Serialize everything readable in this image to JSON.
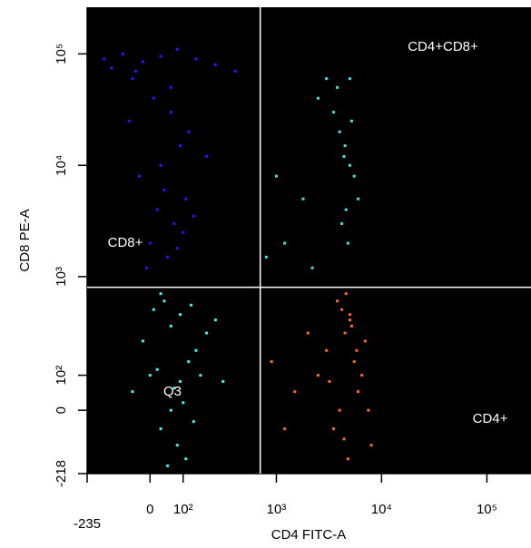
{
  "chart_data": {
    "type": "scatter",
    "x_label": "CD4 FITC-A",
    "y_label": "CD8 PE-A",
    "x_scale": "biexponential",
    "y_scale": "biexponential",
    "xlim": [
      -235,
      262144
    ],
    "ylim": [
      -218,
      262144
    ],
    "xticks": [
      {
        "value": -235,
        "label": "-235"
      },
      0,
      {
        "value": 100,
        "label": "10²"
      },
      {
        "value": 1000,
        "label": "10³"
      },
      {
        "value": 10000,
        "label": "10⁴"
      },
      {
        "value": 100000,
        "label": "10⁵"
      }
    ],
    "yticks": [
      {
        "value": -218,
        "label": "-218"
      },
      0,
      {
        "value": 100,
        "label": "10²"
      },
      {
        "value": 1000,
        "label": "10³"
      },
      {
        "value": 10000,
        "label": "10⁴"
      },
      {
        "value": 100000,
        "label": "10⁵"
      }
    ],
    "divider_x": 700,
    "divider_y": 800,
    "series": [
      {
        "name": "CD8+",
        "color": "#1a1aff",
        "x": [
          -150,
          -80,
          -20,
          30,
          80,
          150,
          250,
          400,
          -120,
          -50,
          10,
          60,
          120,
          200,
          -30,
          40,
          90,
          -60,
          20,
          70,
          110,
          0,
          50,
          100,
          -10,
          80,
          30,
          60,
          140,
          -40
        ],
        "values": [
          90000,
          100000,
          85000,
          95000,
          110000,
          90000,
          80000,
          70000,
          75000,
          60000,
          40000,
          30000,
          20000,
          12000,
          8000,
          6000,
          15000,
          25000,
          4000,
          3000,
          5000,
          2000,
          1500,
          2500,
          1200,
          1800,
          10000,
          50000,
          3500,
          70000
        ]
      },
      {
        "name": "Q3",
        "color": "#40f0f0",
        "x": [
          -50,
          0,
          30,
          60,
          90,
          120,
          150,
          200,
          250,
          10,
          40,
          80,
          110,
          -20,
          60,
          100,
          140,
          20,
          70,
          170,
          50,
          90,
          30,
          130,
          300
        ],
        "values": [
          50,
          100,
          -50,
          0,
          80,
          150,
          200,
          300,
          400,
          500,
          600,
          -100,
          -150,
          250,
          350,
          20,
          -30,
          120,
          60,
          100,
          -180,
          450,
          700,
          550,
          80
        ]
      },
      {
        "name": "CD4+",
        "color": "#ff6a14",
        "x": [
          2500,
          3000,
          3500,
          4000,
          4500,
          5000,
          5500,
          6000,
          7000,
          8000,
          3800,
          4200,
          4800,
          5200,
          4600,
          5800,
          3200,
          4400,
          5000,
          6500,
          1500,
          2000,
          1200,
          900,
          7500
        ],
        "values": [
          100,
          200,
          -50,
          0,
          300,
          400,
          150,
          50,
          250,
          -100,
          600,
          500,
          -150,
          350,
          700,
          200,
          80,
          -80,
          450,
          100,
          50,
          300,
          -50,
          150,
          0
        ]
      },
      {
        "name": "CD4+CD8+",
        "color": "#40e0e0",
        "x": [
          1200,
          1800,
          2500,
          3000,
          3500,
          4000,
          4500,
          5000,
          5500,
          6000,
          4200,
          4800,
          800,
          1000,
          3800,
          5200,
          4600,
          2200,
          5000,
          4400
        ],
        "values": [
          2000,
          5000,
          40000,
          60000,
          30000,
          20000,
          15000,
          10000,
          8000,
          5000,
          3000,
          2000,
          1500,
          8000,
          50000,
          25000,
          4000,
          1200,
          60000,
          12000
        ]
      }
    ]
  }
}
